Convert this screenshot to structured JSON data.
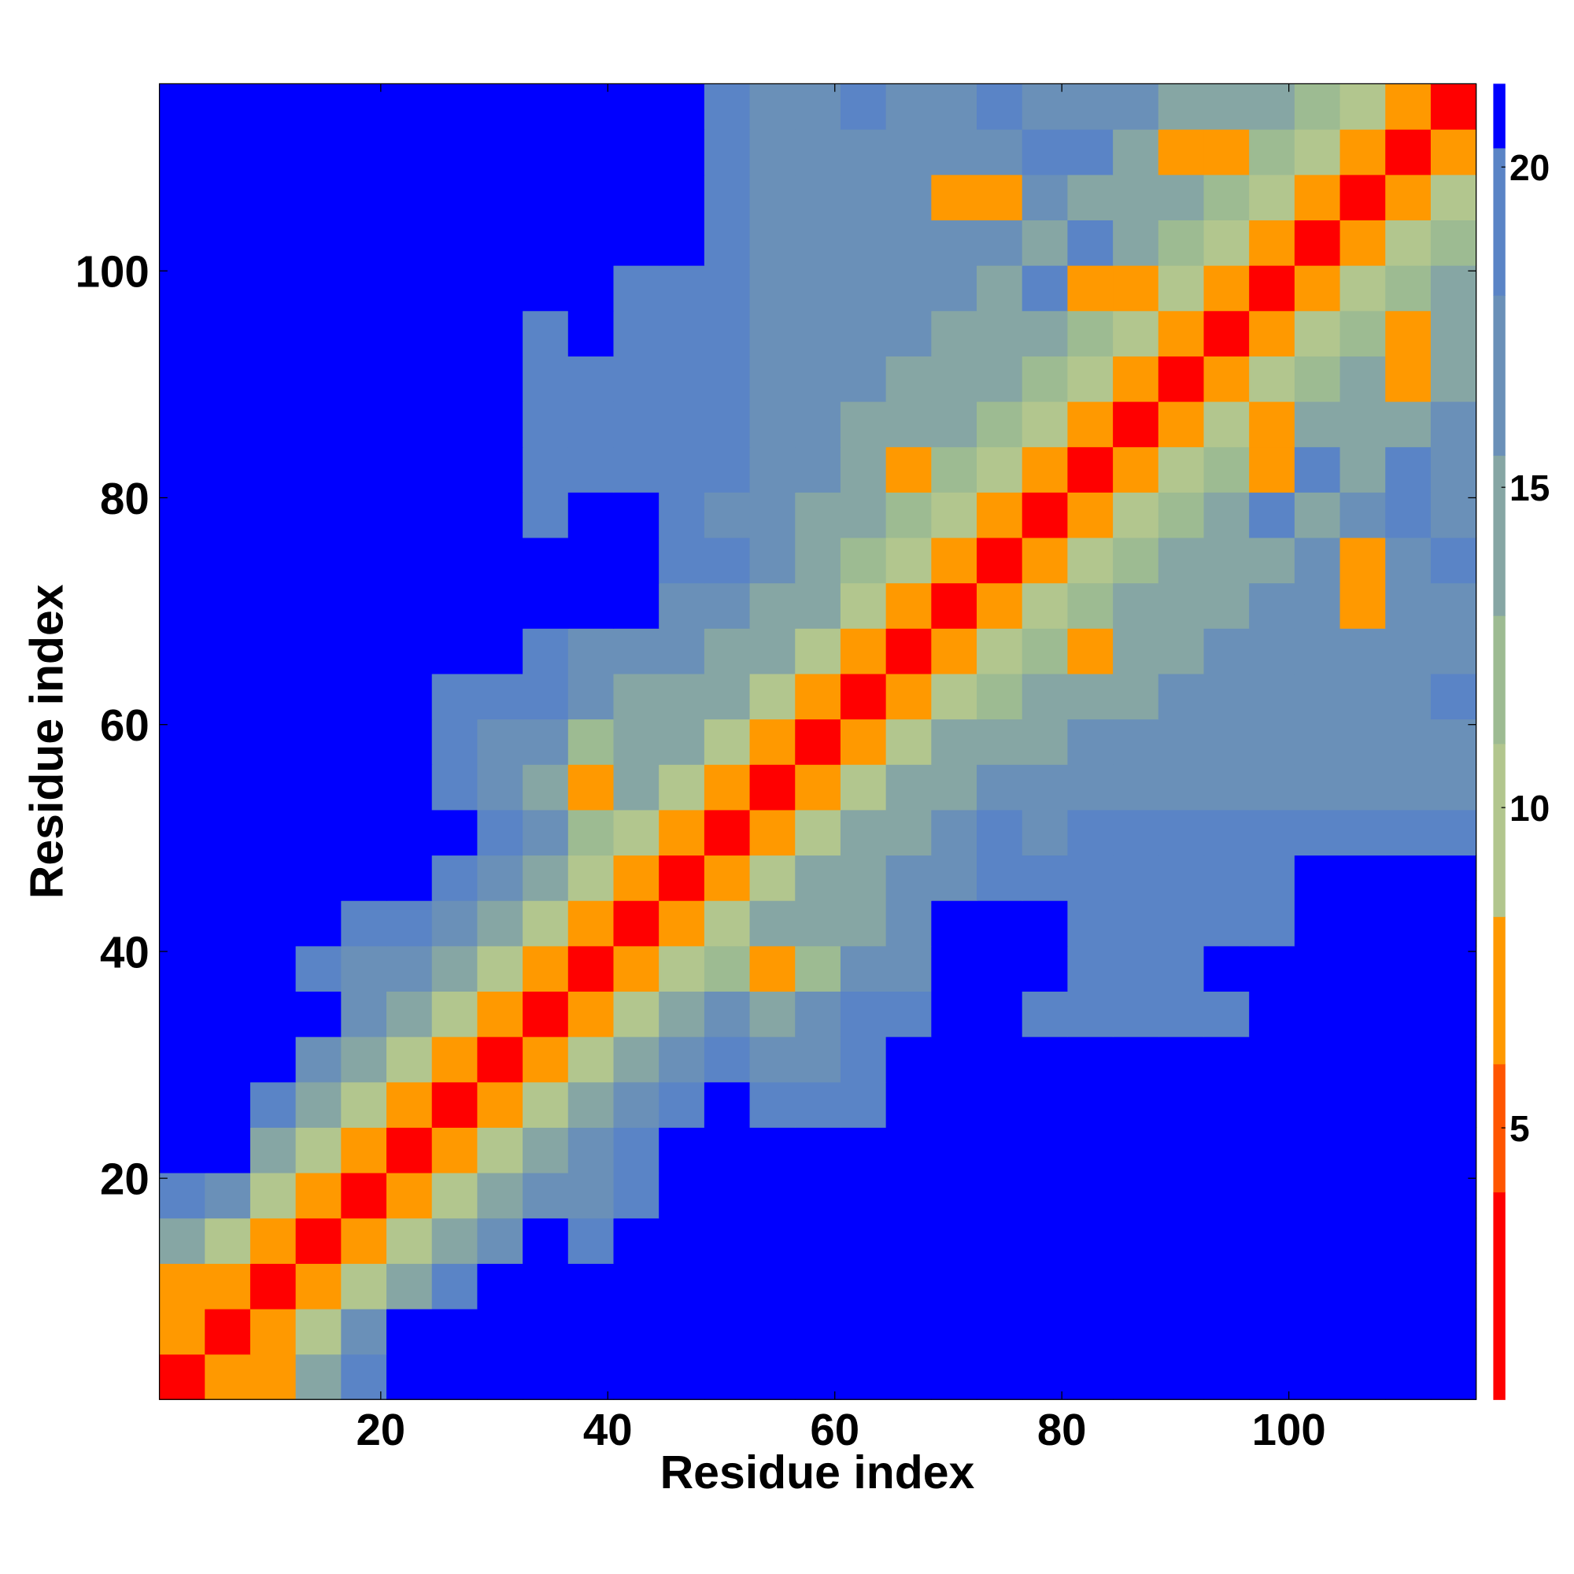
{
  "chart_data": {
    "type": "heatmap",
    "x_label": "Residue index",
    "y_label": "Residue index",
    "x": [
      2.5,
      6.5,
      10.5,
      14.5,
      18.5,
      22.5,
      26.5,
      30.5,
      34.5,
      38.5,
      42.5,
      46.5,
      50.5,
      54.5,
      58.5,
      62.5,
      66.5,
      70.5,
      74.5,
      78.5,
      82.5,
      86.5,
      90.5,
      94.5,
      98.5,
      102.5,
      106.5,
      110.5,
      114.5
    ],
    "y": [
      2.5,
      6.5,
      10.5,
      14.5,
      18.5,
      22.5,
      26.5,
      30.5,
      34.5,
      38.5,
      42.5,
      46.5,
      50.5,
      54.5,
      58.5,
      62.5,
      66.5,
      70.5,
      74.5,
      78.5,
      82.5,
      86.5,
      90.5,
      94.5,
      98.5,
      102.5,
      106.5,
      110.5,
      114.5
    ],
    "z": [
      [
        3,
        7,
        7,
        14,
        19,
        21,
        21,
        21,
        21,
        21,
        21,
        21,
        21,
        21,
        21,
        21,
        21,
        21,
        21,
        21,
        21,
        21,
        21,
        21,
        21,
        21,
        21,
        21,
        21
      ],
      [
        7,
        3,
        8,
        11,
        17,
        21,
        21,
        21,
        21,
        21,
        21,
        21,
        21,
        21,
        21,
        21,
        21,
        21,
        21,
        21,
        21,
        21,
        21,
        21,
        21,
        21,
        21,
        21,
        21
      ],
      [
        7,
        8,
        3,
        8,
        11,
        15,
        19,
        21,
        21,
        21,
        21,
        21,
        21,
        21,
        21,
        21,
        21,
        21,
        21,
        21,
        21,
        21,
        21,
        21,
        21,
        21,
        21,
        21,
        21
      ],
      [
        14,
        11,
        8,
        3,
        8,
        11,
        14,
        18,
        21,
        19,
        21,
        21,
        21,
        21,
        21,
        21,
        21,
        21,
        21,
        21,
        21,
        21,
        21,
        21,
        21,
        21,
        21,
        21,
        21
      ],
      [
        19,
        17,
        11,
        8,
        3,
        8,
        11,
        14,
        17,
        17,
        19,
        21,
        21,
        21,
        21,
        21,
        21,
        21,
        21,
        21,
        21,
        21,
        21,
        21,
        21,
        21,
        21,
        21,
        21
      ],
      [
        21,
        21,
        15,
        11,
        8,
        3,
        8,
        11,
        14,
        16,
        19,
        21,
        21,
        21,
        21,
        21,
        21,
        21,
        21,
        21,
        21,
        21,
        21,
        21,
        21,
        21,
        21,
        21,
        21
      ],
      [
        21,
        21,
        19,
        14,
        11,
        8,
        3,
        8,
        11,
        14,
        16,
        19,
        21,
        19,
        19,
        20,
        21,
        21,
        21,
        21,
        21,
        21,
        21,
        21,
        21,
        21,
        21,
        21,
        21
      ],
      [
        21,
        21,
        21,
        18,
        14,
        11,
        8,
        3,
        8,
        11,
        14,
        17,
        19,
        17,
        18,
        19,
        21,
        21,
        21,
        21,
        21,
        21,
        21,
        21,
        21,
        21,
        21,
        21,
        21
      ],
      [
        21,
        21,
        21,
        21,
        17,
        14,
        11,
        8,
        3,
        8,
        11,
        14,
        17,
        15,
        16,
        19,
        20,
        21,
        21,
        19,
        19,
        19,
        19,
        19,
        21,
        21,
        21,
        21,
        21
      ],
      [
        21,
        21,
        21,
        19,
        17,
        16,
        14,
        11,
        8,
        3,
        8,
        11,
        12,
        7,
        13,
        16,
        18,
        21,
        21,
        21,
        19,
        19,
        19,
        21,
        21,
        21,
        21,
        21,
        21
      ],
      [
        21,
        21,
        21,
        21,
        19,
        19,
        16,
        14,
        11,
        8,
        3,
        8,
        11,
        14,
        14,
        15,
        18,
        21,
        21,
        21,
        20,
        20,
        20,
        20,
        20,
        21,
        21,
        21,
        21
      ],
      [
        21,
        21,
        21,
        21,
        21,
        21,
        19,
        17,
        14,
        11,
        8,
        3,
        8,
        11,
        14,
        14,
        17,
        18,
        19,
        19,
        19,
        19,
        19,
        19,
        19,
        21,
        21,
        21,
        21
      ],
      [
        21,
        21,
        21,
        21,
        21,
        21,
        21,
        19,
        17,
        12,
        11,
        8,
        3,
        8,
        11,
        14,
        15,
        17,
        19,
        18,
        19,
        19,
        19,
        19,
        19,
        19,
        19,
        19,
        19
      ],
      [
        21,
        21,
        21,
        21,
        21,
        21,
        19,
        17,
        15,
        7,
        14,
        11,
        8,
        3,
        8,
        11,
        14,
        14,
        16,
        17,
        17,
        17,
        17,
        17,
        17,
        17,
        17,
        17,
        17
      ],
      [
        21,
        21,
        21,
        21,
        21,
        21,
        19,
        18,
        16,
        13,
        14,
        14,
        11,
        8,
        3,
        8,
        11,
        14,
        14,
        15,
        16,
        16,
        16,
        16,
        16,
        16,
        16,
        16,
        16
      ],
      [
        21,
        21,
        21,
        21,
        21,
        21,
        20,
        19,
        19,
        16,
        15,
        14,
        14,
        11,
        8,
        3,
        7,
        11,
        13,
        15,
        15,
        14,
        16,
        16,
        16,
        18,
        17,
        17,
        19
      ],
      [
        21,
        21,
        21,
        21,
        21,
        21,
        21,
        21,
        20,
        18,
        18,
        17,
        15,
        14,
        11,
        7,
        3,
        7,
        11,
        13,
        8,
        15,
        14,
        16,
        16,
        16,
        16,
        18,
        17
      ],
      [
        21,
        21,
        21,
        21,
        21,
        21,
        21,
        21,
        21,
        21,
        21,
        18,
        17,
        14,
        14,
        11,
        7,
        3,
        7,
        11,
        13,
        15,
        15,
        15,
        16,
        16,
        8,
        16,
        18
      ],
      [
        21,
        21,
        21,
        21,
        21,
        21,
        21,
        21,
        21,
        21,
        21,
        19,
        19,
        16,
        14,
        13,
        11,
        7,
        3,
        7,
        11,
        13,
        15,
        15,
        15,
        16,
        8,
        16,
        19
      ],
      [
        21,
        21,
        21,
        21,
        21,
        21,
        21,
        21,
        19,
        21,
        21,
        19,
        18,
        17,
        15,
        15,
        13,
        11,
        7,
        3,
        7,
        11,
        13,
        15,
        20,
        15,
        16,
        20,
        16
      ],
      [
        21,
        21,
        21,
        21,
        21,
        21,
        21,
        21,
        19,
        19,
        20,
        19,
        19,
        17,
        16,
        15,
        8,
        13,
        11,
        7,
        3,
        7,
        11,
        13,
        8,
        19,
        15,
        19,
        16
      ],
      [
        21,
        21,
        21,
        21,
        21,
        21,
        21,
        21,
        19,
        19,
        20,
        19,
        19,
        17,
        16,
        14,
        15,
        15,
        13,
        11,
        7,
        3,
        7,
        11,
        7,
        15,
        15,
        15,
        16
      ],
      [
        21,
        21,
        21,
        21,
        21,
        21,
        21,
        21,
        19,
        19,
        20,
        19,
        19,
        17,
        16,
        16,
        14,
        15,
        15,
        13,
        11,
        7,
        3,
        7,
        11,
        13,
        15,
        8,
        15
      ],
      [
        21,
        21,
        21,
        21,
        21,
        21,
        21,
        21,
        19,
        21,
        20,
        19,
        19,
        17,
        16,
        16,
        16,
        15,
        15,
        15,
        13,
        11,
        7,
        3,
        7,
        11,
        13,
        8,
        15
      ],
      [
        21,
        21,
        21,
        21,
        21,
        21,
        21,
        21,
        21,
        21,
        20,
        19,
        19,
        17,
        16,
        16,
        16,
        16,
        15,
        20,
        8,
        7,
        11,
        7,
        3,
        7,
        11,
        13,
        15
      ],
      [
        21,
        21,
        21,
        21,
        21,
        21,
        21,
        21,
        21,
        21,
        21,
        21,
        19,
        17,
        16,
        18,
        16,
        16,
        16,
        15,
        19,
        15,
        13,
        11,
        7,
        3,
        7,
        11,
        13
      ],
      [
        21,
        21,
        21,
        21,
        21,
        21,
        21,
        21,
        21,
        21,
        21,
        21,
        19,
        17,
        16,
        17,
        16,
        8,
        8,
        16,
        15,
        15,
        15,
        13,
        11,
        7,
        3,
        7,
        11
      ],
      [
        21,
        21,
        21,
        21,
        21,
        21,
        21,
        21,
        21,
        21,
        21,
        21,
        19,
        17,
        16,
        17,
        18,
        16,
        16,
        20,
        19,
        15,
        8,
        8,
        13,
        11,
        7,
        3,
        7
      ],
      [
        21,
        21,
        21,
        21,
        21,
        21,
        21,
        21,
        21,
        21,
        21,
        21,
        19,
        17,
        16,
        19,
        17,
        18,
        19,
        16,
        16,
        16,
        15,
        15,
        15,
        13,
        11,
        7,
        3
      ]
    ],
    "xlim": [
      0.5,
      116.5
    ],
    "ylim": [
      0.5,
      116.5
    ],
    "xticks": [
      20,
      40,
      60,
      80,
      100
    ],
    "yticks": [
      20,
      40,
      60,
      80,
      100
    ],
    "levels": [
      0.76,
      4,
      6,
      8.3,
      11,
      13,
      15.5,
      18,
      20.3,
      21.3
    ],
    "colors": [
      "#ff0000",
      "#ff5500",
      "#ff9900",
      "#b2c68e",
      "#9dbb92",
      "#86a6a4",
      "#6a90b8",
      "#5a84c6",
      "#0000ff"
    ],
    "colorbar_ticks": [
      5,
      10,
      15,
      20
    ]
  }
}
